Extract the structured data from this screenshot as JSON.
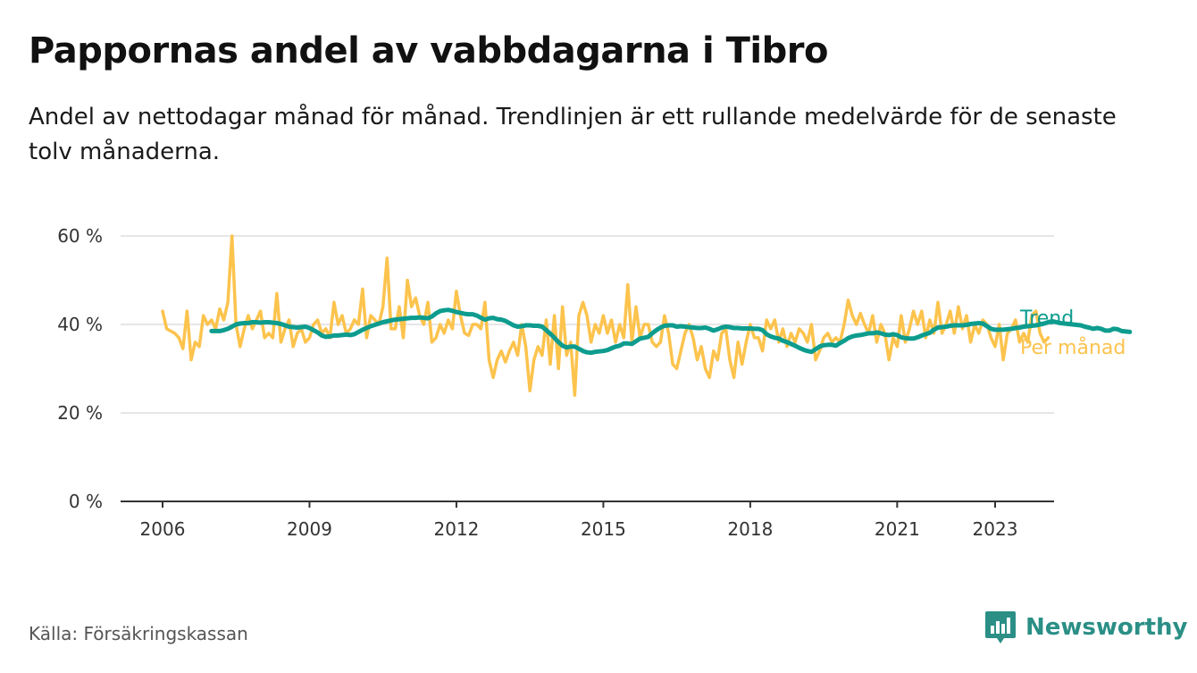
{
  "title": "Pappornas andel av vabbdagarna i Tibro",
  "subtitle": "Andel av nettodagar månad för månad. Trendlinjen är ett rullande medelvärde för de senaste tolv månaderna.",
  "source": "Källa: Försäkringskassan",
  "brand": "Newsworthy",
  "colors": {
    "trend": "#0d9c8e",
    "monthly": "#fcc34d",
    "grid": "#dddddd",
    "axis": "#333333",
    "brand": "#2b8f86"
  },
  "chart_data": {
    "type": "line",
    "x_axis": {
      "tick_labels": [
        "2006",
        "2009",
        "2012",
        "2015",
        "2018",
        "2021",
        "2023"
      ],
      "range": [
        "2006-01",
        "2023-07"
      ]
    },
    "y_axis": {
      "tick_labels": [
        "0 %",
        "20 %",
        "40 %",
        "60 %"
      ],
      "ticks": [
        0,
        20,
        40,
        60
      ],
      "range": [
        0,
        60
      ],
      "unit": "%"
    },
    "grid": true,
    "legend": "direct labels at right end of lines",
    "series": [
      {
        "name": "Per månad",
        "color": "#fcc34d",
        "start": "2006-01",
        "values": [
          43,
          39,
          38.5,
          38,
          37,
          34.5,
          43,
          32,
          36,
          35,
          42,
          40,
          41,
          39,
          43.5,
          41,
          45,
          60,
          40,
          35,
          39,
          42,
          39,
          41,
          43,
          37,
          38,
          37,
          47,
          36,
          39,
          41,
          35,
          38,
          39,
          36,
          37,
          40,
          41,
          38,
          39,
          37,
          45,
          40,
          42,
          38,
          39,
          41,
          40,
          48,
          37,
          42,
          41,
          40,
          44,
          55,
          39,
          39,
          44,
          37,
          50,
          44,
          46,
          42,
          40,
          45,
          36,
          37,
          40,
          38,
          41,
          39,
          47.5,
          42,
          38,
          37.5,
          40,
          40,
          39,
          45,
          32,
          28,
          32,
          34,
          31.5,
          34,
          36,
          33,
          40,
          35,
          25,
          32,
          35,
          33,
          41,
          31,
          42,
          30,
          44,
          33,
          36,
          24,
          42,
          45,
          42,
          36,
          40,
          38,
          42,
          38,
          41,
          36,
          40,
          37,
          49,
          36,
          44,
          37,
          40,
          40,
          36,
          35,
          36,
          42,
          38,
          31,
          30,
          34,
          38,
          40,
          37,
          32,
          35,
          30,
          28,
          34,
          32,
          38,
          39,
          32,
          28,
          36,
          31,
          36,
          40,
          37,
          37,
          34,
          41,
          39,
          41,
          36,
          39,
          35,
          38,
          36,
          39,
          38,
          36,
          40,
          32,
          34,
          37,
          38,
          36,
          37,
          36,
          40,
          45.5,
          42,
          40,
          42.5,
          40,
          38,
          42,
          36,
          40,
          38,
          32,
          37,
          35,
          42,
          36,
          39,
          43,
          40,
          43,
          37,
          41,
          38,
          45,
          38,
          40,
          43,
          38,
          44,
          39,
          42,
          36,
          40,
          38,
          41,
          40,
          37,
          35,
          40,
          32,
          38,
          39,
          41,
          36,
          38,
          36,
          42,
          43,
          38,
          36,
          37
        ]
      },
      {
        "name": "Trend",
        "color": "#0d9c8e",
        "start": "2007-01",
        "values": [
          38.5,
          38.5,
          38.5,
          38.7,
          39,
          39.5,
          40,
          40.2,
          40.3,
          40.3,
          40.5,
          40.5,
          40.4,
          40.5,
          40.5,
          40.4,
          40.3,
          40.1,
          39.8,
          39.5,
          39.4,
          39.3,
          39.4,
          39.5,
          39.2,
          38.7,
          38.2,
          37.5,
          37.2,
          37.3,
          37.5,
          37.5,
          37.6,
          37.7,
          37.6,
          37.8,
          38.3,
          38.8,
          39.2,
          39.6,
          39.9,
          40.2,
          40.5,
          40.7,
          40.9,
          41.1,
          41.2,
          41.3,
          41.4,
          41.5,
          41.5,
          41.6,
          41.5,
          41.4,
          41.8,
          42.5,
          43,
          43.2,
          43.3,
          43.1,
          42.8,
          42.6,
          42.4,
          42.3,
          42.3,
          42,
          41.5,
          41.1,
          41.4,
          41.5,
          41.2,
          41.1,
          40.8,
          40.3,
          39.8,
          39.5,
          39.6,
          39.8,
          39.8,
          39.7,
          39.7,
          39.5,
          38.7,
          37.9,
          37,
          36,
          35.2,
          34.8,
          35,
          35,
          34.5,
          34,
          33.7,
          33.6,
          33.8,
          33.9,
          34,
          34.2,
          34.6,
          35,
          35.2,
          35.7,
          35.7,
          35.6,
          36.2,
          36.8,
          37,
          37.2,
          38,
          38.7,
          39.3,
          39.7,
          39.8,
          39.8,
          39.5,
          39.6,
          39.5,
          39.4,
          39.3,
          39.2,
          39.2,
          39.3,
          39,
          38.6,
          38.9,
          39.3,
          39.5,
          39.4,
          39.2,
          39.2,
          39.1,
          39.1,
          39.1,
          39,
          39,
          38.7,
          37.8,
          37.3,
          37,
          36.8,
          36.3,
          36,
          35.6,
          35.2,
          34.7,
          34.3,
          34,
          33.8,
          34.4,
          35,
          35.3,
          35.4,
          35.4,
          35.2,
          35.8,
          36.3,
          36.9,
          37.3,
          37.5,
          37.6,
          37.8,
          38,
          38,
          38.2,
          38,
          37.7,
          37.6,
          37.8,
          37.6,
          37.1,
          36.9,
          36.8,
          36.8,
          37.1,
          37.5,
          37.8,
          38.1,
          38.8,
          39.3,
          39.4,
          39.5,
          39.7,
          39.8,
          39.8,
          39.8,
          39.9,
          40.1,
          40.2,
          40.3,
          40.2,
          39.6,
          39,
          38.8,
          38.8,
          38.8,
          38.9,
          39,
          39.2,
          39.3,
          39.5,
          39.6,
          39.7,
          39.8,
          40,
          40.2,
          40.5,
          40.7,
          40.5,
          40.3,
          40.2,
          40.1,
          40,
          39.9,
          39.8,
          39.5,
          39.3,
          39,
          39.2,
          39,
          38.6,
          38.6,
          39,
          38.9,
          38.5,
          38.4,
          38.3
        ]
      }
    ]
  }
}
